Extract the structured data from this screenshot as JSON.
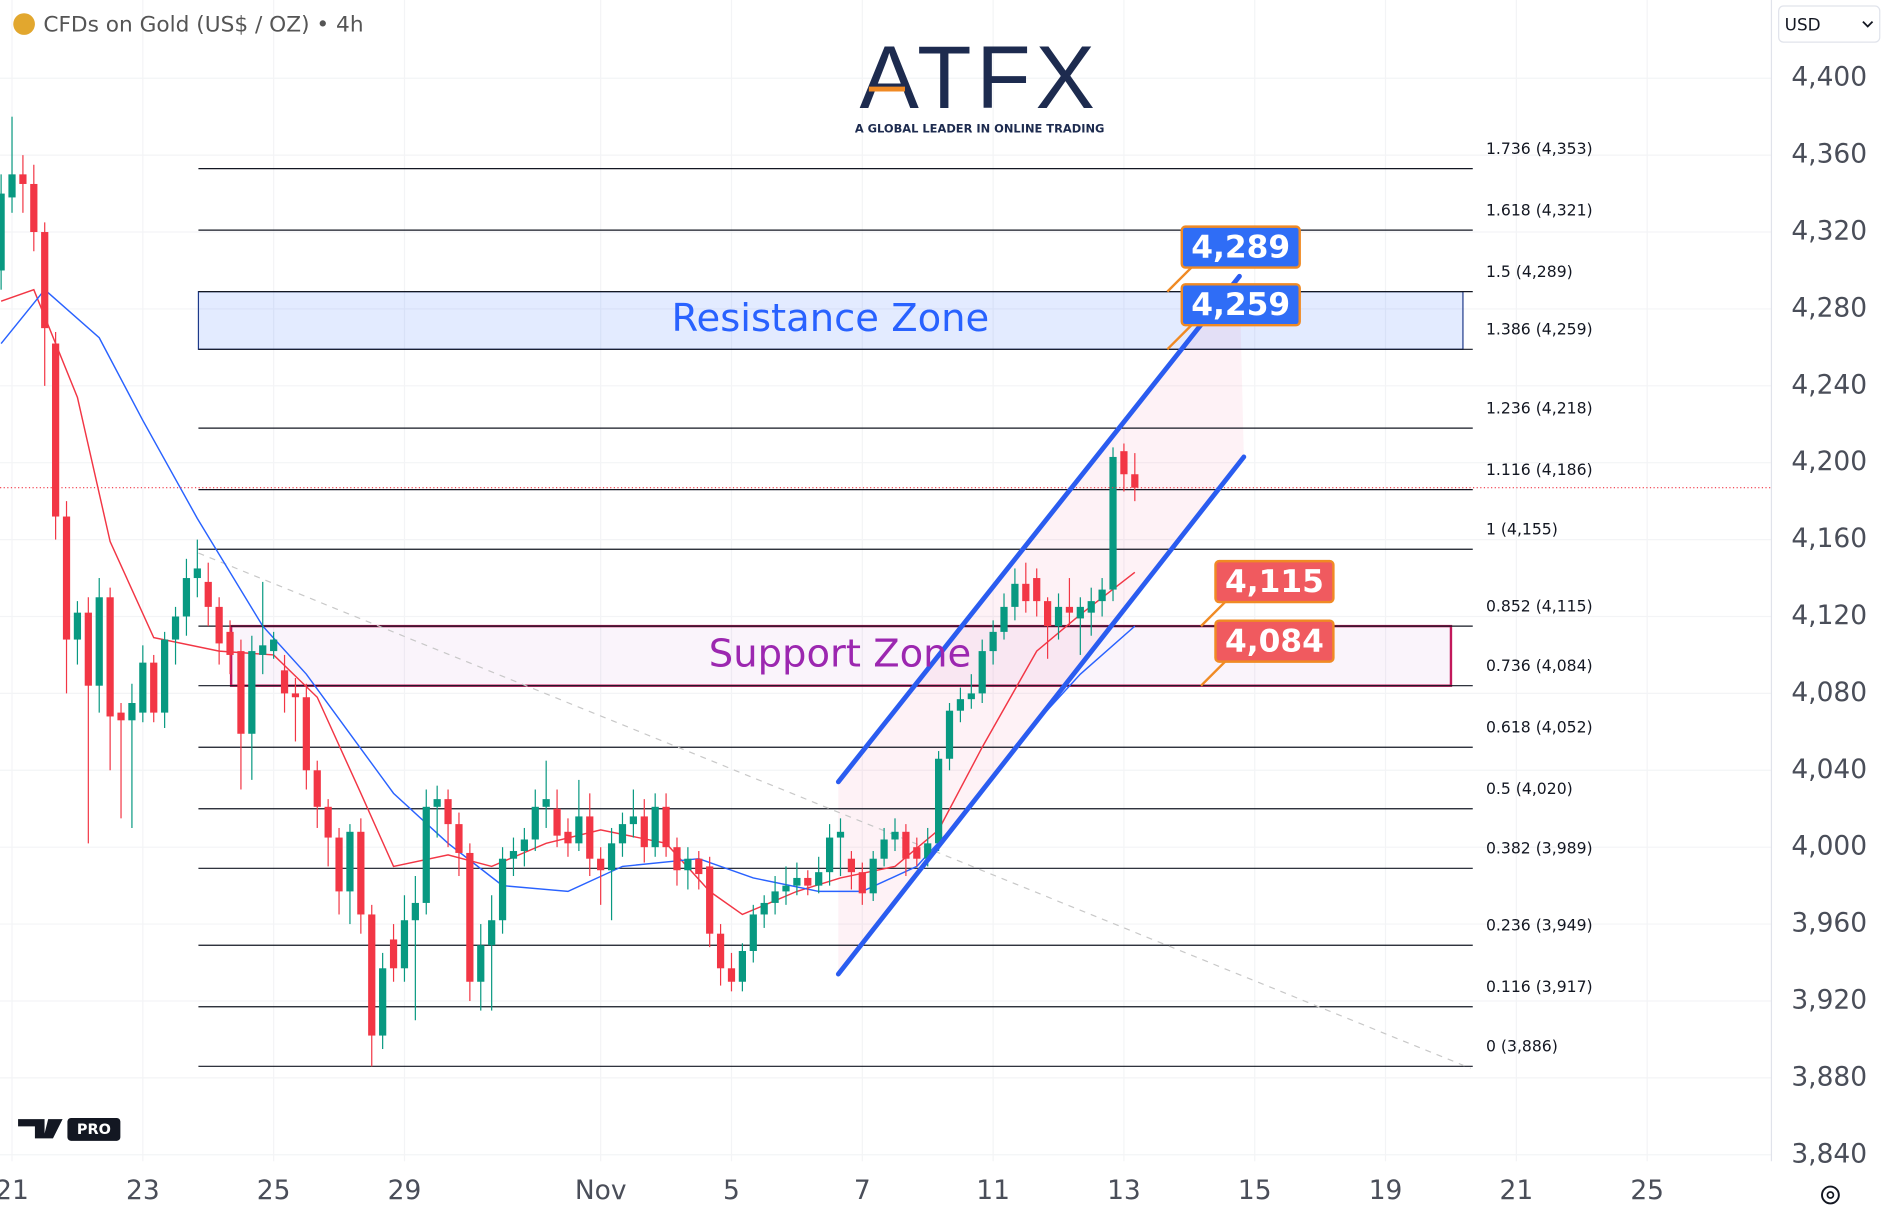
{
  "header": {
    "symbol": "CFDs on Gold (US$ / OZ) • 4h",
    "currency": "USD"
  },
  "logo": {
    "name": "ATFX",
    "tagline": "A GLOBAL LEADER IN ONLINE TRADING"
  },
  "badge": "PRO",
  "chart_data": {
    "type": "candlestick",
    "up_color": "#089981",
    "down_color": "#f23645",
    "ohlc": [
      [
        4300,
        4350,
        4290,
        4340
      ],
      [
        4338,
        4380,
        4330,
        4350
      ],
      [
        4350,
        4360,
        4330,
        4345
      ],
      [
        4345,
        4355,
        4310,
        4320
      ],
      [
        4320,
        4325,
        4240,
        4270
      ],
      [
        4262,
        4268,
        4160,
        4172
      ],
      [
        4172,
        4180,
        4080,
        4108
      ],
      [
        4108,
        4128,
        4095,
        4122
      ],
      [
        4122,
        4130,
        4002,
        4084
      ],
      [
        4084,
        4140,
        4070,
        4130
      ],
      [
        4130,
        4135,
        4040,
        4068
      ],
      [
        4070,
        4075,
        4015,
        4066
      ],
      [
        4066,
        4085,
        4010,
        4075
      ],
      [
        4070,
        4105,
        4065,
        4096
      ],
      [
        4096,
        4100,
        4065,
        4070
      ],
      [
        4070,
        4112,
        4062,
        4108
      ],
      [
        4108,
        4125,
        4095,
        4120
      ],
      [
        4120,
        4150,
        4110,
        4140
      ],
      [
        4140,
        4160,
        4130,
        4145
      ],
      [
        4138,
        4148,
        4115,
        4125
      ],
      [
        4125,
        4130,
        4095,
        4106
      ],
      [
        4112,
        4118,
        4090,
        4100
      ],
      [
        4102,
        4108,
        4030,
        4059
      ],
      [
        4059,
        4110,
        4035,
        4102
      ],
      [
        4100,
        4138,
        4090,
        4105
      ],
      [
        4102,
        4112,
        4098,
        4108
      ],
      [
        4092,
        4100,
        4070,
        4080
      ],
      [
        4080,
        4088,
        4055,
        4078
      ],
      [
        4078,
        4085,
        4030,
        4040
      ],
      [
        4040,
        4045,
        4010,
        4021
      ],
      [
        4021,
        4025,
        3990,
        4005
      ],
      [
        4005,
        4010,
        3965,
        3977
      ],
      [
        3977,
        4012,
        3960,
        4008
      ],
      [
        4008,
        4015,
        3955,
        3965
      ],
      [
        3965,
        3970,
        3886,
        3902
      ],
      [
        3902,
        3945,
        3895,
        3937
      ],
      [
        3952,
        3960,
        3930,
        3937
      ],
      [
        3937,
        3975,
        3930,
        3962
      ],
      [
        3962,
        3985,
        3910,
        3971
      ],
      [
        3971,
        4030,
        3965,
        4021
      ],
      [
        4021,
        4032,
        4005,
        4025
      ],
      [
        4025,
        4030,
        4000,
        4012
      ],
      [
        4012,
        4018,
        3985,
        3997
      ],
      [
        3997,
        4002,
        3920,
        3930
      ],
      [
        3930,
        3960,
        3915,
        3949
      ],
      [
        3949,
        3975,
        3915,
        3962
      ],
      [
        3962,
        4000,
        3955,
        3994
      ],
      [
        3994,
        4005,
        3985,
        3998
      ],
      [
        3998,
        4010,
        3990,
        4004
      ],
      [
        4004,
        4030,
        3998,
        4021
      ],
      [
        4021,
        4045,
        4010,
        4025
      ],
      [
        4020,
        4030,
        4000,
        4006
      ],
      [
        4008,
        4015,
        3995,
        4002
      ],
      [
        4002,
        4035,
        3998,
        4016
      ],
      [
        4016,
        4028,
        3985,
        3994
      ],
      [
        3994,
        4000,
        3970,
        3988
      ],
      [
        3988,
        4010,
        3962,
        4002
      ],
      [
        4002,
        4018,
        3995,
        4012
      ],
      [
        4012,
        4030,
        4005,
        4016
      ],
      [
        4016,
        4025,
        3992,
        4000
      ],
      [
        4000,
        4028,
        3995,
        4021
      ],
      [
        4021,
        4028,
        3995,
        4000
      ],
      [
        4000,
        4005,
        3980,
        3988
      ],
      [
        3988,
        4000,
        3978,
        3994
      ],
      [
        3994,
        3998,
        3978,
        3986
      ],
      [
        3990,
        3995,
        3948,
        3955
      ],
      [
        3955,
        3960,
        3928,
        3937
      ],
      [
        3937,
        3945,
        3925,
        3930
      ],
      [
        3930,
        3950,
        3925,
        3946
      ],
      [
        3946,
        3970,
        3940,
        3965
      ],
      [
        3965,
        3975,
        3958,
        3971
      ],
      [
        3971,
        3985,
        3965,
        3977
      ],
      [
        3977,
        3990,
        3970,
        3980
      ],
      [
        3980,
        3992,
        3975,
        3984
      ],
      [
        3984,
        3988,
        3975,
        3980
      ],
      [
        3980,
        3995,
        3976,
        3987
      ],
      [
        3987,
        4012,
        3980,
        4005
      ],
      [
        4005,
        4015,
        3985,
        4008
      ],
      [
        3994,
        3998,
        3978,
        3987
      ],
      [
        3987,
        3992,
        3970,
        3976
      ],
      [
        3976,
        3998,
        3972,
        3994
      ],
      [
        3994,
        4010,
        3990,
        4004
      ],
      [
        4004,
        4015,
        3998,
        4008
      ],
      [
        4008,
        4012,
        3985,
        3994
      ],
      [
        4000,
        4005,
        3990,
        3994
      ],
      [
        3994,
        4010,
        3990,
        4002
      ],
      [
        4002,
        4050,
        3998,
        4046
      ],
      [
        4046,
        4075,
        4040,
        4071
      ],
      [
        4071,
        4083,
        4065,
        4077
      ],
      [
        4077,
        4090,
        4072,
        4080
      ],
      [
        4080,
        4108,
        4075,
        4102
      ],
      [
        4102,
        4118,
        4095,
        4112
      ],
      [
        4112,
        4132,
        4108,
        4125
      ],
      [
        4125,
        4145,
        4118,
        4137
      ],
      [
        4137,
        4148,
        4122,
        4128
      ],
      [
        4140,
        4145,
        4120,
        4128
      ],
      [
        4128,
        4130,
        4098,
        4115
      ],
      [
        4115,
        4132,
        4108,
        4125
      ],
      [
        4125,
        4140,
        4115,
        4122
      ],
      [
        4119,
        4130,
        4100,
        4125
      ],
      [
        4122,
        4135,
        4110,
        4128
      ],
      [
        4128,
        4140,
        4120,
        4134
      ],
      [
        4134,
        4208,
        4128,
        4203
      ],
      [
        4206,
        4210,
        4185,
        4194
      ],
      [
        4194,
        4205,
        4180,
        4187
      ]
    ],
    "xlim": [
      -0.1,
      162.4
    ],
    "xticks": [
      {
        "value": 1,
        "label": "21"
      },
      {
        "value": 13,
        "label": "23"
      },
      {
        "value": 25,
        "label": "25"
      },
      {
        "value": 37,
        "label": "29"
      },
      {
        "value": 55,
        "label": "Nov"
      },
      {
        "value": 67,
        "label": "5"
      },
      {
        "value": 79,
        "label": "7"
      },
      {
        "value": 91,
        "label": "11"
      },
      {
        "value": 103,
        "label": "13"
      },
      {
        "value": 115,
        "label": "15"
      },
      {
        "value": 127,
        "label": "19"
      },
      {
        "value": 139,
        "label": "21"
      },
      {
        "value": 151,
        "label": "25"
      }
    ],
    "ylim": [
      3836.6,
      4440.7
    ],
    "yticks": [
      {
        "value": 3840,
        "label": "3,840"
      },
      {
        "value": 3880,
        "label": "3,880"
      },
      {
        "value": 3920,
        "label": "3,920"
      },
      {
        "value": 3960,
        "label": "3,960"
      },
      {
        "value": 4000,
        "label": "4,000"
      },
      {
        "value": 4040,
        "label": "4,040"
      },
      {
        "value": 4080,
        "label": "4,080"
      },
      {
        "value": 4120,
        "label": "4,120"
      },
      {
        "value": 4160,
        "label": "4,160"
      },
      {
        "value": 4200,
        "label": "4,200"
      },
      {
        "value": 4240,
        "label": "4,240"
      },
      {
        "value": 4280,
        "label": "4,280"
      },
      {
        "value": 4320,
        "label": "4,320"
      },
      {
        "value": 4360,
        "label": "4,360"
      },
      {
        "value": 4400,
        "label": "4,400"
      }
    ],
    "grid": true,
    "moving_averages": [
      {
        "color": "#f23645",
        "x": [
          0,
          3,
          7,
          10,
          14,
          20,
          25,
          29,
          33,
          36,
          41,
          45,
          50,
          55,
          61,
          65,
          68,
          73,
          77,
          82,
          86,
          90,
          95,
          99,
          104
        ],
        "values": [
          4284,
          4290,
          4234,
          4159,
          4109,
          4102,
          4100,
          4078,
          4028,
          3990,
          3996,
          3990,
          4002,
          4009,
          4002,
          3977,
          3965,
          3977,
          3984,
          3990,
          4009,
          4052,
          4102,
          4121,
          4143
        ]
      },
      {
        "color": "#2962ff",
        "x": [
          0,
          4,
          9,
          13,
          18,
          24,
          28,
          32,
          36,
          41,
          46,
          52,
          57,
          64,
          69,
          75,
          79,
          84,
          88,
          94,
          99,
          104
        ],
        "values": [
          4262,
          4290,
          4265,
          4222,
          4171,
          4115,
          4090,
          4059,
          4028,
          4002,
          3980,
          3977,
          3990,
          3994,
          3984,
          3977,
          3977,
          3990,
          4015,
          4059,
          4090,
          4115
        ]
      }
    ],
    "fib_x": [
      18.1,
      135.0
    ],
    "fib_levels": [
      {
        "price": 3886,
        "label": "0 (3,886)"
      },
      {
        "price": 3917,
        "label": "0.116 (3,917)"
      },
      {
        "price": 3949,
        "label": "0.236 (3,949)"
      },
      {
        "price": 3989,
        "label": "0.382 (3,989)"
      },
      {
        "price": 4020,
        "label": "0.5 (4,020)"
      },
      {
        "price": 4052,
        "label": "0.618 (4,052)"
      },
      {
        "price": 4084,
        "label": "0.736 (4,084)"
      },
      {
        "price": 4115,
        "label": "0.852 (4,115)"
      },
      {
        "price": 4155,
        "label": "1 (4,155)"
      },
      {
        "price": 4186,
        "label": "1.116 (4,186)"
      },
      {
        "price": 4218,
        "label": "1.236 (4,218)"
      },
      {
        "price": 4259,
        "label": "1.386 (4,259)"
      },
      {
        "price": 4289,
        "label": "1.5 (4,289)"
      },
      {
        "price": 4321,
        "label": "1.618 (4,321)"
      },
      {
        "price": 4353,
        "label": "1.736 (4,353)"
      }
    ],
    "zones": [
      {
        "label": "Resistance Zone",
        "low": 4259,
        "high": 4289,
        "x": [
          18.1,
          134.1
        ],
        "low_label": "4,259",
        "high_label": "4,289",
        "color": "#2962ff",
        "tag_color": "#2f6df6"
      },
      {
        "label": "Support Zone",
        "low": 4084,
        "high": 4115,
        "x": [
          21.1,
          133.0
        ],
        "low_label": "4,084",
        "high_label": "4,115",
        "color": "#9c27b0",
        "tag_color": "#f05a5f"
      }
    ],
    "channel": {
      "color": "#2a5cf0",
      "lines": [
        {
          "x": [
            76.8,
            113.6
          ],
          "values": [
            4034,
            4297
          ]
        },
        {
          "x": [
            76.8,
            114.0
          ],
          "values": [
            3934,
            4203
          ]
        }
      ]
    },
    "trendline": {
      "x": [
        18.1,
        134.8
      ],
      "values": [
        4153,
        3885
      ]
    }
  }
}
